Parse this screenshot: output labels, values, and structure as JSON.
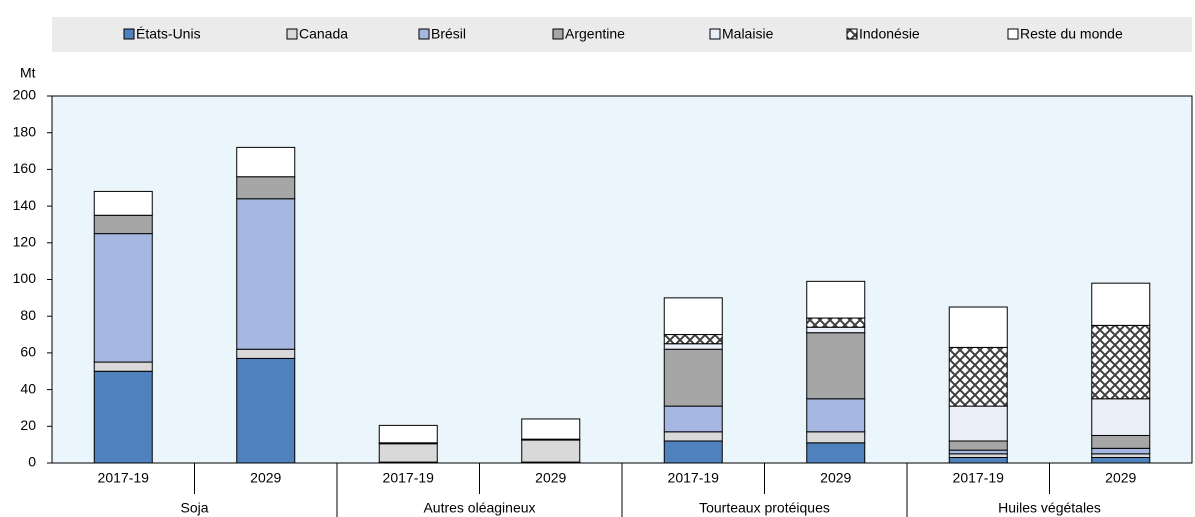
{
  "chart_data": {
    "type": "stacked_bar",
    "y_axis_label": "Mt",
    "categories": [
      "2017-19",
      "2029",
      "2017-19",
      "2029",
      "2017-19",
      "2029",
      "2017-19",
      "2029"
    ],
    "groups": [
      "Soja",
      "Autres oléagineux",
      "Tourteaux protéiques",
      "Huiles végétales"
    ],
    "ylim": [
      0,
      200
    ],
    "yticks": [
      0,
      20,
      40,
      60,
      80,
      100,
      120,
      140,
      160,
      180,
      200
    ],
    "series": [
      {
        "name": "États-Unis",
        "color": "#4f81bd",
        "values": [
          50,
          57,
          0.5,
          0.5,
          12,
          11,
          3,
          3
        ]
      },
      {
        "name": "Canada",
        "color": "#d9d9d9",
        "values": [
          5,
          5,
          10,
          12,
          5,
          6,
          2,
          2
        ]
      },
      {
        "name": "Brésil",
        "color": "#a6b8e2",
        "values": [
          70,
          82,
          0,
          0,
          14,
          18,
          2,
          3
        ]
      },
      {
        "name": "Argentine",
        "color": "#a6a6a6",
        "values": [
          10,
          12,
          0.5,
          0.5,
          31,
          36,
          5,
          7
        ]
      },
      {
        "name": "Malaisie",
        "color": "#eaeef8",
        "values": [
          0,
          0,
          0,
          0,
          3,
          3,
          19,
          20
        ]
      },
      {
        "name": "Indonésie",
        "color": "#ffffff",
        "pattern": "crosshatch",
        "values": [
          0,
          0,
          0,
          0,
          5,
          5,
          32,
          40
        ]
      },
      {
        "name": "Reste du monde",
        "color": "#ffffff",
        "values": [
          13,
          16,
          9.5,
          11,
          20,
          20,
          22,
          23
        ]
      }
    ]
  }
}
